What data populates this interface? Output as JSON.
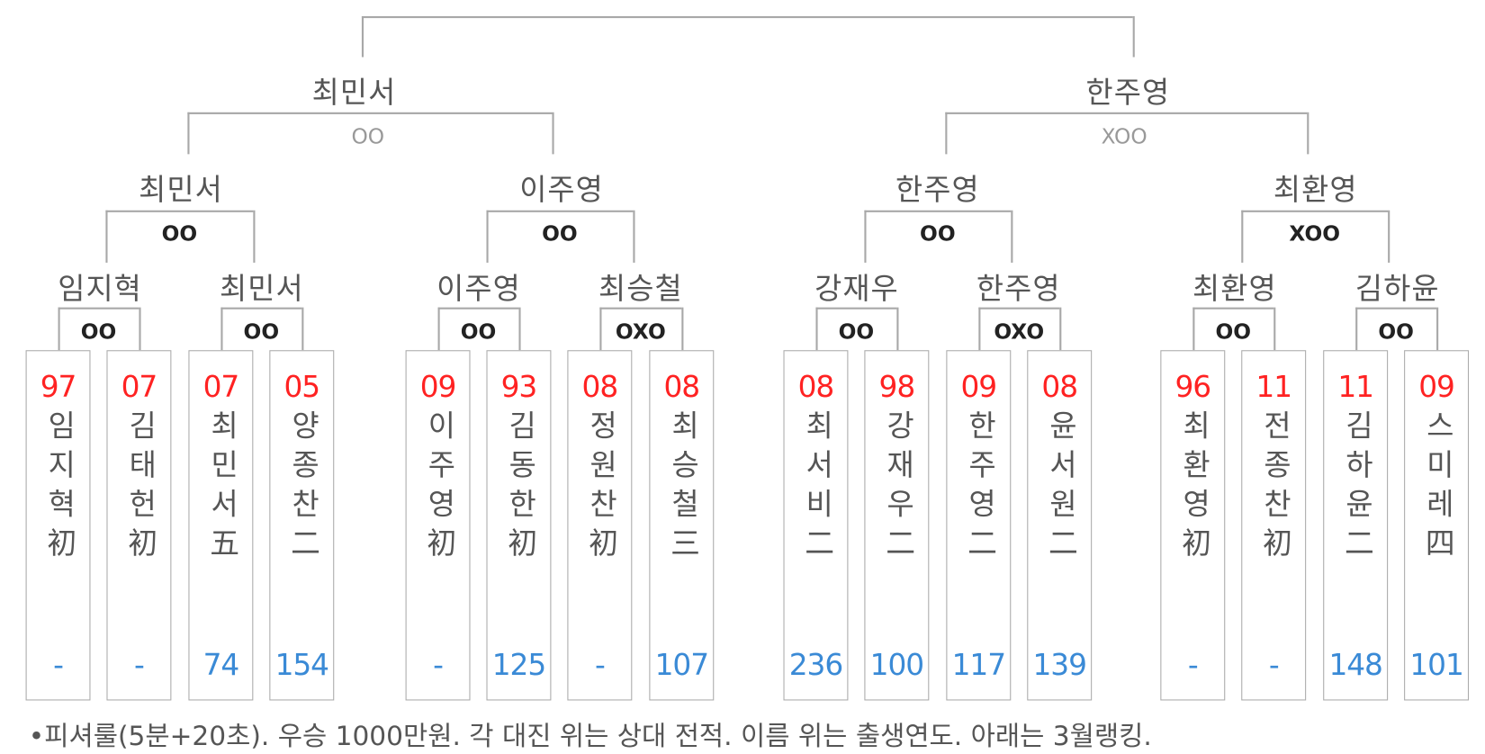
{
  "colors": {
    "birth_year": "#ff2222",
    "ranking": "#3a8ad6",
    "lines": "#a8a8a8"
  },
  "final": {
    "left": "최민서",
    "right": "한주영"
  },
  "semis": [
    {
      "score": "OO"
    },
    {
      "score": "XOO"
    }
  ],
  "quarters": [
    {
      "winner": "최민서",
      "score": "OO"
    },
    {
      "winner": "이주영",
      "score": "OO"
    },
    {
      "winner": "한주영",
      "score": "OO"
    },
    {
      "winner": "최환영",
      "score": "XOO"
    }
  ],
  "round16": [
    {
      "winner": "임지혁",
      "score": "OO"
    },
    {
      "winner": "최민서",
      "score": "OO"
    },
    {
      "winner": "이주영",
      "score": "OO"
    },
    {
      "winner": "최승철",
      "score": "OXO"
    },
    {
      "winner": "강재우",
      "score": "OO"
    },
    {
      "winner": "한주영",
      "score": "OXO"
    },
    {
      "winner": "최환영",
      "score": "OO"
    },
    {
      "winner": "김하윤",
      "score": "OO"
    }
  ],
  "players": [
    {
      "year": "97",
      "name": "임지혁",
      "dan": "初",
      "ranking": "-"
    },
    {
      "year": "07",
      "name": "김태헌",
      "dan": "初",
      "ranking": "-"
    },
    {
      "year": "07",
      "name": "최민서",
      "dan": "五",
      "ranking": "74"
    },
    {
      "year": "05",
      "name": "양종찬",
      "dan": "二",
      "ranking": "154"
    },
    {
      "year": "09",
      "name": "이주영",
      "dan": "初",
      "ranking": "-"
    },
    {
      "year": "93",
      "name": "김동한",
      "dan": "初",
      "ranking": "125"
    },
    {
      "year": "08",
      "name": "정원찬",
      "dan": "初",
      "ranking": "-"
    },
    {
      "year": "08",
      "name": "최승철",
      "dan": "三",
      "ranking": "107"
    },
    {
      "year": "08",
      "name": "최서비",
      "dan": "二",
      "ranking": "236"
    },
    {
      "year": "98",
      "name": "강재우",
      "dan": "二",
      "ranking": "100"
    },
    {
      "year": "09",
      "name": "한주영",
      "dan": "二",
      "ranking": "117"
    },
    {
      "year": "08",
      "name": "윤서원",
      "dan": "二",
      "ranking": "139"
    },
    {
      "year": "96",
      "name": "최환영",
      "dan": "初",
      "ranking": "-"
    },
    {
      "year": "11",
      "name": "전종찬",
      "dan": "初",
      "ranking": "-"
    },
    {
      "year": "11",
      "name": "김하윤",
      "dan": "二",
      "ranking": "148"
    },
    {
      "year": "09",
      "name": "스미레",
      "dan": "四",
      "ranking": "101"
    }
  ],
  "footnote": "•피셔룰(5분+20초). 우승 1000만원. 각 대진 위는 상대 전적. 이름 위는 출생연도. 아래는 3월랭킹."
}
